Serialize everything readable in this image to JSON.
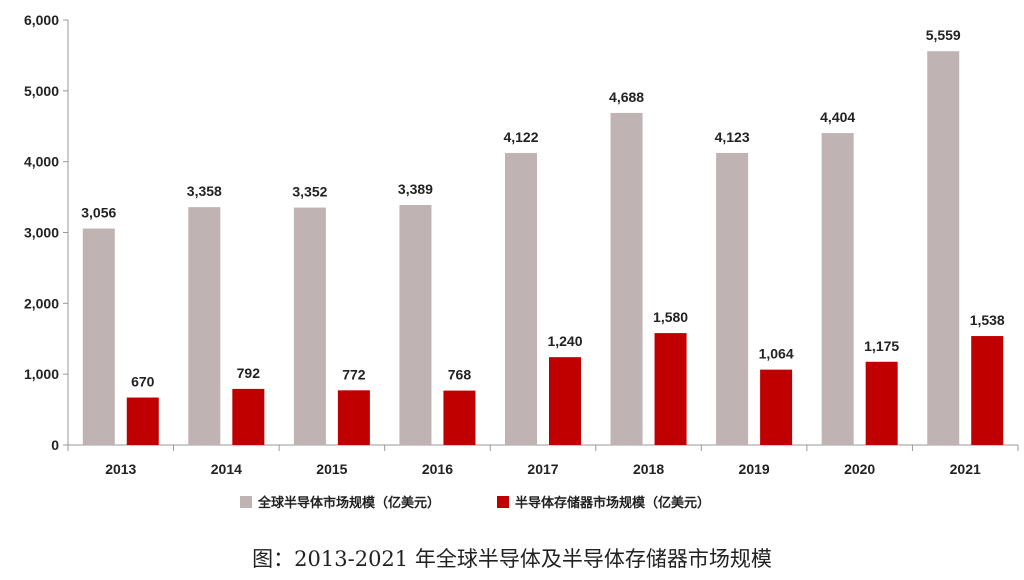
{
  "caption": "图：2013-2021 年全球半导体及半导体存储器市场规模",
  "colors": {
    "series1": "#bfb3b3",
    "series2": "#c00000",
    "axis": "#999999",
    "text": "#222222"
  },
  "chart_data": {
    "type": "bar",
    "categories": [
      "2013",
      "2014",
      "2015",
      "2016",
      "2017",
      "2018",
      "2019",
      "2020",
      "2021"
    ],
    "series": [
      {
        "name": "全球半导体市场规模（亿美元）",
        "values": [
          3056,
          3358,
          3352,
          3389,
          4122,
          4688,
          4123,
          4404,
          5559
        ]
      },
      {
        "name": "半导体存储器市场规模（亿美元）",
        "values": [
          670,
          792,
          772,
          768,
          1240,
          1580,
          1064,
          1175,
          1538
        ]
      }
    ],
    "ylim": [
      0,
      6000
    ],
    "yticks": [
      0,
      1000,
      2000,
      3000,
      4000,
      5000,
      6000
    ],
    "ytick_labels": [
      "0",
      "1,000",
      "2,000",
      "3,000",
      "4,000",
      "5,000",
      "6,000"
    ],
    "data_labels": [
      [
        "3,056",
        "3,358",
        "3,352",
        "3,389",
        "4,122",
        "4,688",
        "4,123",
        "4,404",
        "5,559"
      ],
      [
        "670",
        "792",
        "772",
        "768",
        "1,240",
        "1,580",
        "1,064",
        "1,175",
        "1,538"
      ]
    ],
    "grid": false,
    "legend_position": "bottom"
  }
}
